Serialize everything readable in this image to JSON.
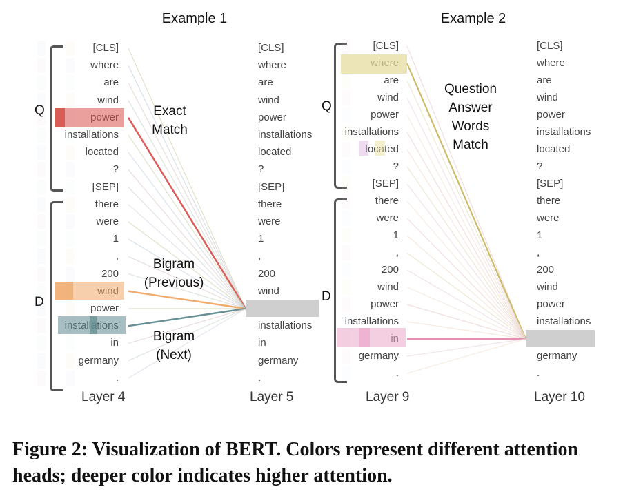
{
  "examples": [
    {
      "title": "Example 1",
      "left_layer": "Layer 4",
      "right_layer": "Layer 5",
      "tokens": [
        "[CLS]",
        "where",
        "are",
        "wind",
        "power",
        "installations",
        "located",
        "?",
        "[SEP]",
        "there",
        "were",
        "1",
        ",",
        "200",
        "wind",
        "power",
        "installations",
        "in",
        "germany",
        "."
      ],
      "query_label": "Q",
      "doc_label": "D",
      "annotations": [
        {
          "lines": [
            "Exact",
            "Match"
          ]
        },
        {
          "lines": [
            "Bigram",
            "(Previous)"
          ]
        },
        {
          "lines": [
            "Bigram",
            "(Next)"
          ]
        }
      ],
      "target_token": "power",
      "highlight_colors": {
        "exact": "#d9534f",
        "previous": "#f0a868",
        "next": "#5f8a8f",
        "target": "#cfcfcf"
      }
    },
    {
      "title": "Example 2",
      "left_layer": "Layer 9",
      "right_layer": "Layer 10",
      "tokens": [
        "[CLS]",
        "where",
        "are",
        "wind",
        "power",
        "installations",
        "located",
        "?",
        "[SEP]",
        "there",
        "were",
        "1",
        ",",
        "200",
        "wind",
        "power",
        "installations",
        "in",
        "germany",
        "."
      ],
      "query_label": "Q",
      "doc_label": "D",
      "annotations": [
        {
          "lines": [
            "Question",
            "Answer",
            "Words",
            "Match"
          ]
        }
      ],
      "target_token": "in",
      "highlight_colors": {
        "where": "#e6dca0",
        "in": "#e9a7c9",
        "target": "#cfcfcf"
      }
    }
  ],
  "caption": "Figure 2: Visualization of BERT. Colors represent different attention heads; deeper color indicates higher attention."
}
